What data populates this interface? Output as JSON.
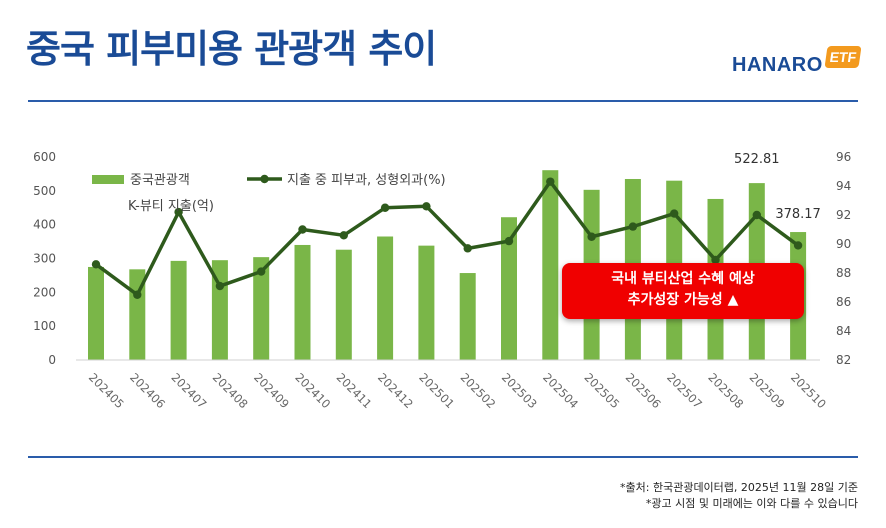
{
  "page": {
    "title": "중국 피부미용 관광객 추이"
  },
  "logo": {
    "text": "HANARO",
    "badge": "ETF",
    "badge_color": "#f39a1e"
  },
  "callout": {
    "line1": "국내 뷰티산업 수혜 예상",
    "line2": "추가성장 가능성 ▲",
    "color": "#f00000"
  },
  "footnotes": {
    "source": "*출처: 한국관광데이터랩, 2025년 11월 28일 기준",
    "disclaimer": "*광고 시점 및 미래에는 이와 다를 수 있습니다"
  },
  "chart_data": {
    "type": "bar",
    "title": "",
    "categories": [
      "202405",
      "202406",
      "202407",
      "202408",
      "202409",
      "202410",
      "202411",
      "202412",
      "202501",
      "202502",
      "202503",
      "202504",
      "202505",
      "202506",
      "202507",
      "202508",
      "202509",
      "202510"
    ],
    "series": [
      {
        "name": "중국관광객",
        "type": "bar",
        "axis": "left",
        "color": "#7ab648",
        "values": [
          275,
          268,
          293,
          295,
          304,
          340,
          326,
          365,
          338,
          257,
          422,
          561,
          503,
          535,
          530,
          476,
          522.81,
          378.17
        ]
      },
      {
        "name": "지출 중 피부과, 성형외과(%)",
        "type": "line",
        "axis": "right",
        "color": "#2e5a1c",
        "values": [
          88.6,
          86.5,
          92.2,
          87.1,
          88.1,
          91.0,
          90.6,
          92.5,
          92.6,
          89.7,
          90.2,
          94.3,
          90.5,
          91.2,
          92.1,
          88.9,
          92.0,
          89.9
        ]
      }
    ],
    "y_left": {
      "range": [
        0,
        600
      ],
      "ticks": [
        "0",
        "100",
        "200",
        "300",
        "400",
        "500",
        "600"
      ],
      "label": "K-뷰티 지출(억)"
    },
    "y_right": {
      "range": [
        82,
        96
      ],
      "ticks": [
        "82",
        "84",
        "86",
        "88",
        "90",
        "92",
        "94",
        "96"
      ]
    },
    "data_labels": [
      {
        "index": 16,
        "text": "522.81"
      },
      {
        "index": 17,
        "text": "378.17"
      }
    ],
    "grid": false,
    "legend": "top-left"
  }
}
